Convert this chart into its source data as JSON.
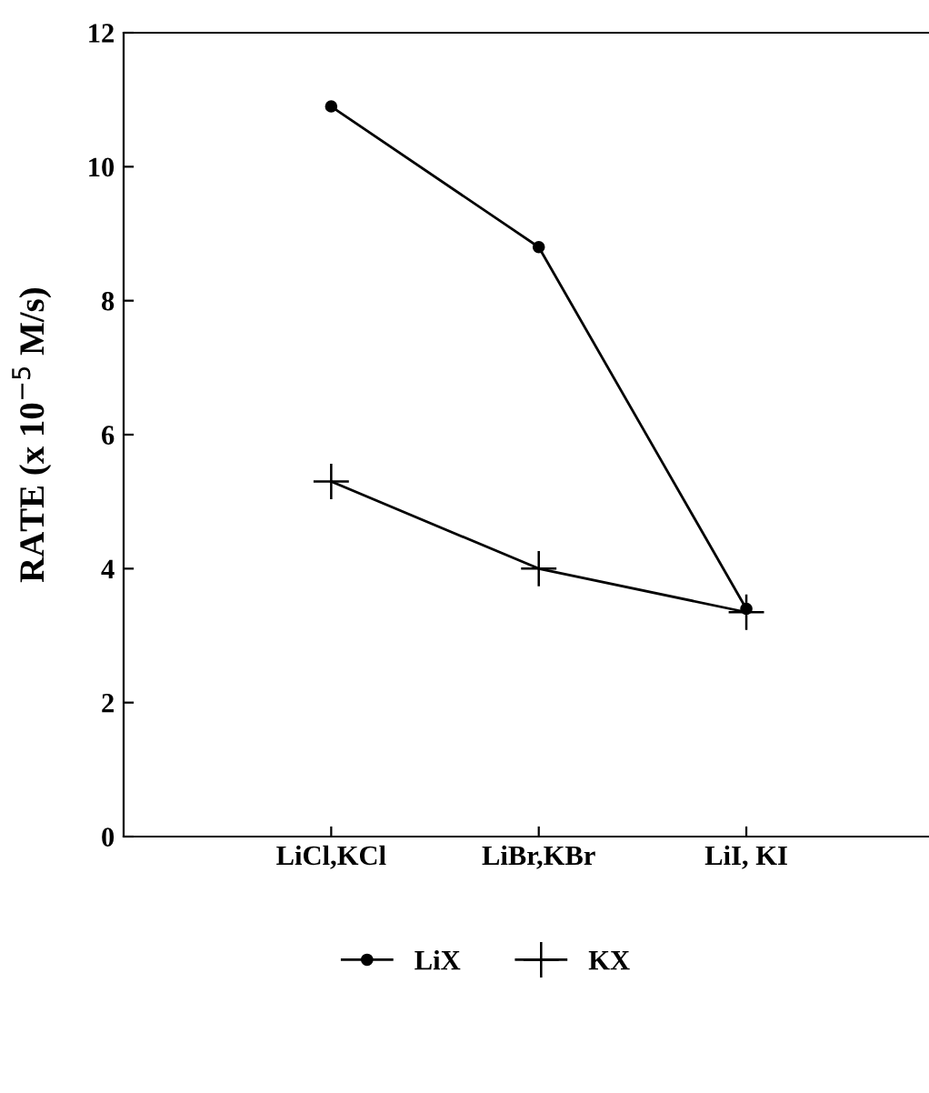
{
  "chart_data": {
    "type": "line",
    "ylabel": "RATE (x 10$^{−5}$ M/s)",
    "categories": [
      "LiCl,KCl",
      "LiBr,KBr",
      "LiI, KI"
    ],
    "series": [
      {
        "name": "LiX",
        "color": "#000000",
        "marker": "circle",
        "values": [
          10.9,
          8.8,
          3.4
        ]
      },
      {
        "name": "KX",
        "color": "#000000",
        "marker": "cross",
        "values": [
          5.3,
          4.0,
          3.35
        ]
      }
    ],
    "ylim": [
      0,
      12
    ],
    "yticks": [
      0,
      2,
      4,
      6,
      8,
      10,
      12
    ],
    "grid": false,
    "legend": "bottom",
    "line_style": "solid"
  }
}
